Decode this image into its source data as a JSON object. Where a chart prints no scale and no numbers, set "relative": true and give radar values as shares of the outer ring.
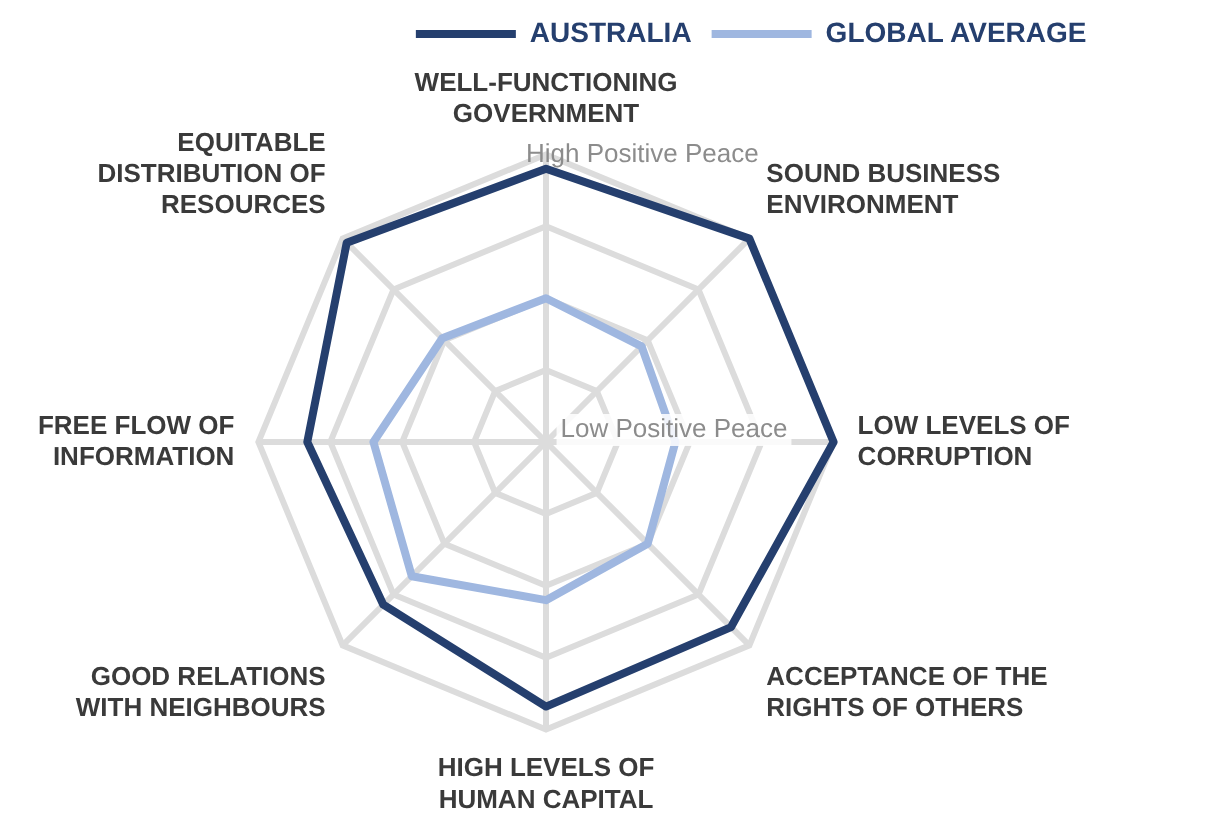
{
  "chart_data": {
    "type": "radar",
    "relative": true,
    "legend": "top right",
    "categories": [
      "WELL-FUNCTIONING GOVERNMENT",
      "SOUND BUSINESS ENVIRONMENT",
      "LOW LEVELS OF CORRUPTION",
      "ACCEPTANCE OF THE RIGHTS OF OTHERS",
      "HIGH LEVELS OF HUMAN CAPITAL",
      "GOOD RELATIONS WITH NEIGHBOURS",
      "FREE FLOW OF INFORMATION",
      "EQUITABLE DISTRIBUTION OF RESOURCES"
    ],
    "series": [
      {
        "name": "AUSTRALIA",
        "color": "#253f6e",
        "values": [
          0.95,
          1.0,
          1.0,
          0.91,
          0.92,
          0.8,
          0.83,
          0.98
        ]
      },
      {
        "name": "GLOBAL AVERAGE",
        "color": "#9fb7e0",
        "values": [
          0.5,
          0.47,
          0.45,
          0.5,
          0.55,
          0.66,
          0.6,
          0.51
        ]
      }
    ],
    "annotations": [
      "High Positive Peace",
      "Low Positive Peace"
    ],
    "grid": true
  }
}
